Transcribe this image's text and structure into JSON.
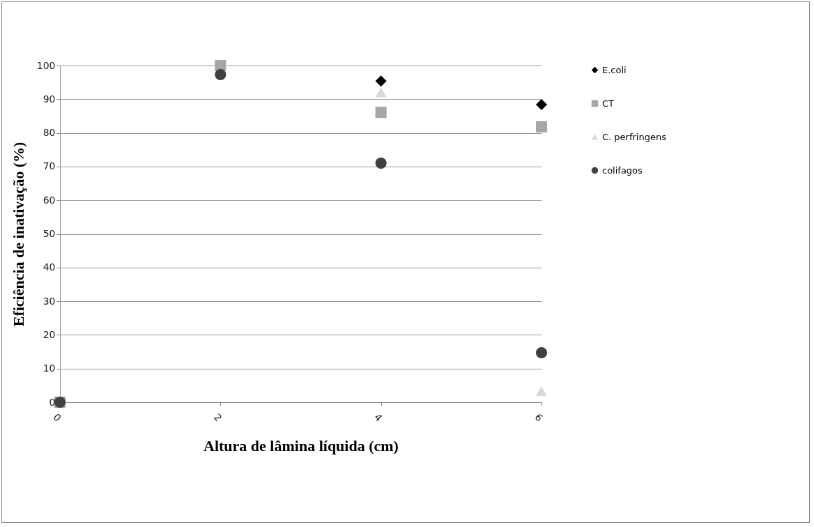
{
  "chart_data": {
    "type": "scatter",
    "xlabel": "Altura de lâmina líquida (cm)",
    "ylabel": "Eficiência de inativação (%)",
    "x": [
      0,
      2,
      4,
      6
    ],
    "xlim": [
      0,
      6
    ],
    "xticks": [
      0,
      2,
      4,
      6
    ],
    "ylim": [
      0,
      100
    ],
    "yticks": [
      0,
      10,
      20,
      30,
      40,
      50,
      60,
      70,
      80,
      90,
      100
    ],
    "grid": "y",
    "legend": "right",
    "series": [
      {
        "name": "E.coli",
        "color": "#000000",
        "marker": "diamond",
        "values": [
          null,
          null,
          95.4,
          88.4
        ]
      },
      {
        "name": "CT",
        "color": "#a6a6a6",
        "marker": "square",
        "values": [
          0,
          100,
          86.1,
          81.8
        ]
      },
      {
        "name": "C. perfringens",
        "color": "#d9d9d9",
        "marker": "triangle",
        "values": [
          null,
          null,
          92,
          3.3
        ]
      },
      {
        "name": "colifagos",
        "color": "#404040",
        "marker": "circle",
        "values": [
          0,
          97.3,
          71,
          14.7
        ]
      }
    ]
  }
}
